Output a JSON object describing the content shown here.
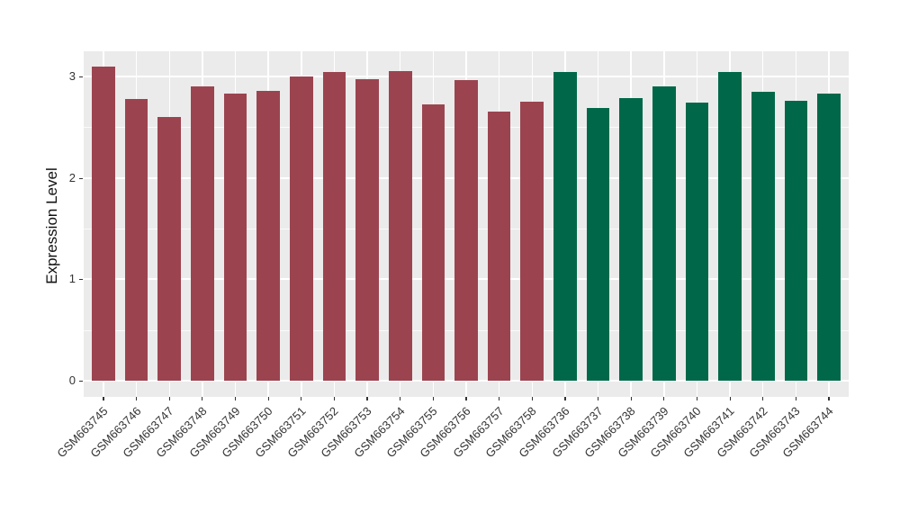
{
  "page": {
    "background_color": "#FFFFFF"
  },
  "chart_data": {
    "type": "bar",
    "title": "",
    "xlabel": "",
    "ylabel": "Expression Level",
    "legend": "none",
    "grid": "on",
    "orientation": "vertical",
    "categories": [
      "GSM663745",
      "GSM663746",
      "GSM663747",
      "GSM663748",
      "GSM663749",
      "GSM663750",
      "GSM663751",
      "GSM663752",
      "GSM663753",
      "GSM663754",
      "GSM663755",
      "GSM663756",
      "GSM663757",
      "GSM663758",
      "GSM663736",
      "GSM663737",
      "GSM663738",
      "GSM663739",
      "GSM663740",
      "GSM663741",
      "GSM663742",
      "GSM663743",
      "GSM663744"
    ],
    "values": [
      3.1,
      2.78,
      2.6,
      2.9,
      2.83,
      2.86,
      3.0,
      3.04,
      2.97,
      3.05,
      2.72,
      2.96,
      2.65,
      2.75,
      3.04,
      2.69,
      2.79,
      2.9,
      2.74,
      3.04,
      2.85,
      2.76,
      2.83
    ],
    "bar_colors": [
      "#9B4450",
      "#9B4450",
      "#9B4450",
      "#9B4450",
      "#9B4450",
      "#9B4450",
      "#9B4450",
      "#9B4450",
      "#9B4450",
      "#9B4450",
      "#9B4450",
      "#9B4450",
      "#9B4450",
      "#9B4450",
      "#006849",
      "#006849",
      "#006849",
      "#006849",
      "#006849",
      "#006849",
      "#006849",
      "#006849",
      "#006849"
    ],
    "group_colors": {
      "maroon_group": "#9B4450",
      "green_group": "#006849"
    },
    "yticks": [
      0,
      1,
      2,
      3
    ],
    "ytick_labels": [
      "0",
      "1",
      "2",
      "3"
    ],
    "minor_yticks": [
      0.5,
      1.5,
      2.5
    ],
    "ylim": [
      -0.16,
      3.25
    ],
    "x_label_rotation_deg": 45,
    "style": {
      "panel_background": "#EBEBEB",
      "gridline_color": "#FFFFFF",
      "axis_text_color": "#333333"
    }
  }
}
